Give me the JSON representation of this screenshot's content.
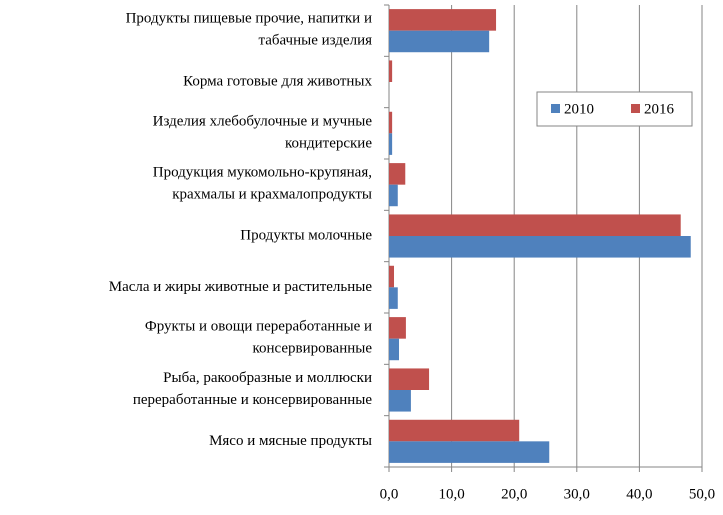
{
  "chart_data": {
    "type": "bar",
    "orientation": "horizontal",
    "categories": [
      "Продукты пищевые прочие, напитки и\nтабачные изделия",
      "Корма готовые для животных",
      "Изделия хлебобулочные и мучные\nкондитерские",
      "Продукция мукомольно-крупяная,\nкрахмалы и крахмалопродукты",
      "Продукты молочные",
      "Масла и жиры животные и растительные",
      "Фрукты и овощи переработанные и\nконсервированные",
      "Рыба, ракообразные и моллюски\nпереработанные и консервированные",
      "Мясо и мясные продукты"
    ],
    "series": [
      {
        "name": "2010",
        "color": "#4f81bd",
        "values": [
          16.0,
          0,
          0.5,
          1.4,
          48.2,
          1.4,
          1.6,
          3.5,
          25.6
        ]
      },
      {
        "name": "2016",
        "color": "#c0504d",
        "values": [
          17.1,
          0.5,
          0.5,
          2.6,
          46.6,
          0.8,
          2.7,
          6.4,
          20.8
        ]
      }
    ],
    "xlim": [
      0,
      50
    ],
    "xticks": [
      {
        "value": 0,
        "label": "0,0"
      },
      {
        "value": 10,
        "label": "10,0"
      },
      {
        "value": 20,
        "label": "20,0"
      },
      {
        "value": 30,
        "label": "30,0"
      },
      {
        "value": 40,
        "label": "40,0"
      },
      {
        "value": 50,
        "label": "50,0"
      }
    ],
    "grid": true,
    "legend": "upper right"
  }
}
